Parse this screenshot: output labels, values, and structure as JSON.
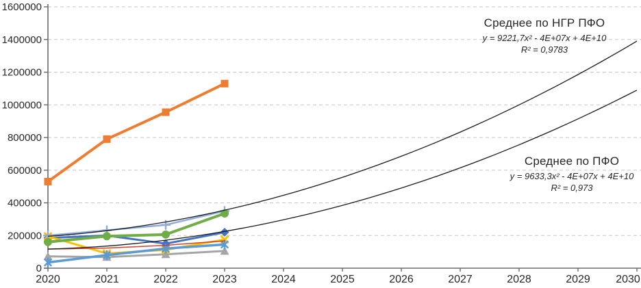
{
  "chart_data": {
    "type": "line",
    "title": "",
    "xlabel": "",
    "ylabel": "",
    "x_range": [
      2020,
      2030
    ],
    "y_range": [
      0,
      1600000
    ],
    "x_ticks": [
      "2020",
      "2021",
      "2022",
      "2023",
      "2024",
      "2025",
      "2026",
      "2027",
      "2028",
      "2029",
      "2030"
    ],
    "y_ticks": [
      "0",
      "200000",
      "400000",
      "600000",
      "800000",
      "1000000",
      "1200000",
      "1400000",
      "1600000"
    ],
    "grid": "horizontal-dashed",
    "legend_position": "none",
    "categories": [
      2020,
      2021,
      2022,
      2023
    ],
    "series": [
      {
        "name": "series-orange-square",
        "color": "#ED7D31",
        "marker": "square",
        "line_width": 4,
        "values": [
          530000,
          790000,
          955000,
          1130000
        ]
      },
      {
        "name": "series-blue-diamond",
        "color": "#4472C4",
        "marker": "diamond",
        "line_width": 3,
        "values": [
          185000,
          200000,
          150000,
          220000
        ]
      },
      {
        "name": "series-gray-triangle",
        "color": "#A5A5A5",
        "marker": "triangle",
        "line_width": 3,
        "values": [
          72000,
          68000,
          85000,
          105000
        ]
      },
      {
        "name": "series-gold-x",
        "color": "#FFC000",
        "marker": "x",
        "line_width": 3,
        "values": [
          195000,
          90000,
          112000,
          175000
        ]
      },
      {
        "name": "series-lightblue-asterisk",
        "color": "#5B9BD5",
        "marker": "asterisk",
        "line_width": 3.5,
        "values": [
          35000,
          80000,
          120000,
          145000
        ]
      },
      {
        "name": "series-red-thin",
        "color": "#D0402E",
        "marker": "none",
        "line_width": 1.5,
        "values": [
          117000,
          123000,
          140000,
          167000
        ]
      },
      {
        "name": "series-periwinkle-plus",
        "color": "#8FAADC",
        "marker": "plus",
        "line_width": 2.5,
        "values": [
          200000,
          232000,
          265000,
          350000
        ]
      },
      {
        "name": "series-green-circle",
        "color": "#70AD47",
        "marker": "circle",
        "line_width": 4,
        "values": [
          160000,
          196000,
          206000,
          335000
        ]
      }
    ],
    "trendlines": [
      {
        "name": "trend-ngr-pfo",
        "label": "Среднее по НГР ПФО",
        "equation": "y = 9221,7x² - 4E+07x + 4E+10",
        "r_squared": "R² = 0,9783",
        "color": "#1a1a1a",
        "fit_points": [
          [
            2020,
            195000
          ],
          [
            2023,
            355000
          ],
          [
            2030,
            1390000
          ]
        ]
      },
      {
        "name": "trend-pfo",
        "label": "Среднее по ПФО",
        "equation": "y = 9633,3x² - 4E+07x + 4E+10",
        "r_squared": "R² = 0,973",
        "color": "#1a1a1a",
        "fit_points": [
          [
            2020,
            117000
          ],
          [
            2023,
            225000
          ],
          [
            2030,
            1090000
          ]
        ]
      }
    ],
    "colors": {
      "gridline": "#C6C6C6",
      "axis": "#696969",
      "tick_text": "#262626"
    }
  }
}
